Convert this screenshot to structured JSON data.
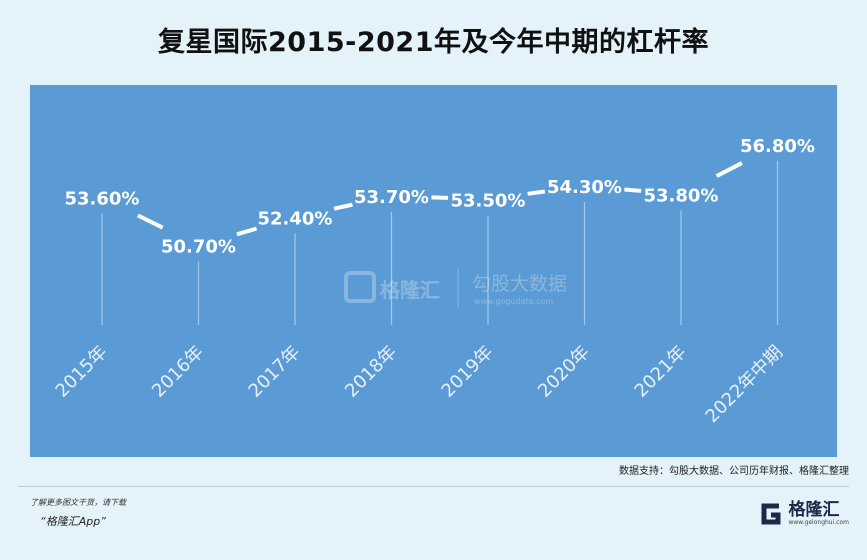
{
  "title": "复星国际2015-2021年及今年中期的杠杆率",
  "chart_data": {
    "type": "line",
    "categories": [
      "2015年",
      "2016年",
      "2017年",
      "2018年",
      "2019年",
      "2020年",
      "2021年",
      "2022年中期"
    ],
    "values": [
      53.6,
      50.7,
      52.4,
      53.7,
      53.5,
      54.3,
      53.8,
      56.8
    ],
    "data_labels": [
      "53.60%",
      "50.70%",
      "52.40%",
      "53.70%",
      "53.50%",
      "54.30%",
      "53.80%",
      "56.80%"
    ],
    "ylim": [
      46,
      58
    ],
    "series_color": "#ffffff",
    "background_color": "#5b9bd5"
  },
  "watermark": {
    "brand": "格隆汇",
    "product": "勾股大数据",
    "url": "www.gogudata.com"
  },
  "source": "数据支持：勾股大数据、公司历年财报、格隆汇整理",
  "footer": {
    "note": "了解更多图文干货，请下载",
    "app": "“格隆汇App”"
  },
  "logo": {
    "text": "格隆汇",
    "url": "www.gelonghui.com",
    "color": "#1a2b4a"
  }
}
